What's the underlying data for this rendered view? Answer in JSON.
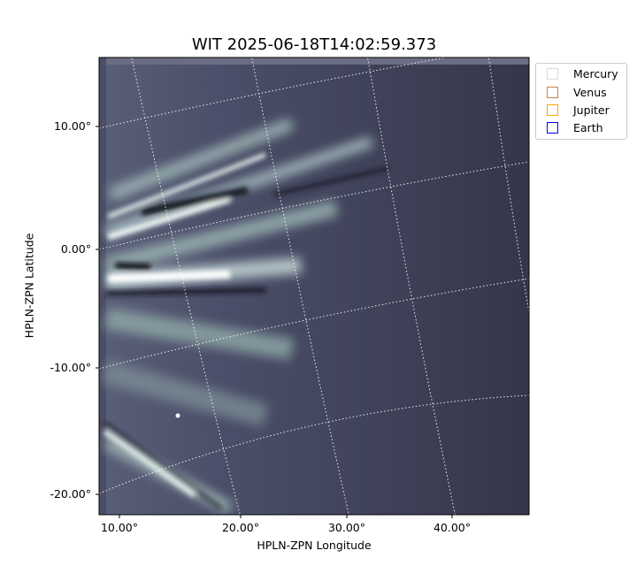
{
  "chart_data": {
    "type": "heatmap",
    "title": "WIT 2025-06-18T14:02:59.373",
    "xlabel": "HPLN-ZPN Longitude",
    "ylabel": "HPLN-ZPN Latitude",
    "x_ticks": [
      "10.00°",
      "20.00°",
      "30.00°",
      "40.00°"
    ],
    "y_ticks": [
      "10.00°",
      "0.00°",
      "-10.00°",
      "-20.00°"
    ],
    "colormap": "bone",
    "grid": true,
    "legend_placement": "outside-top-right",
    "legend": [
      {
        "label": "Mercury",
        "color": "#d9d9d9"
      },
      {
        "label": "Venus",
        "color": "#cd7f4a"
      },
      {
        "label": "Jupiter",
        "color": "#ffa500"
      },
      {
        "label": "Earth",
        "color": "#0000ff"
      }
    ]
  }
}
